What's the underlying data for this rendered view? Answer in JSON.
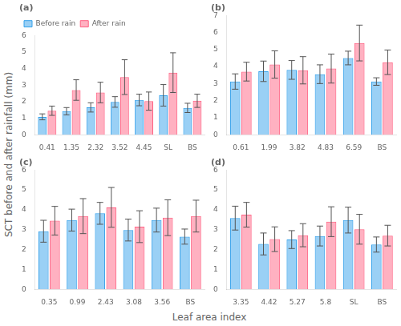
{
  "xlabel": "Leaf area index",
  "ylabel": "SCT before and after rainfall (mm)",
  "chart_data": [
    {
      "type": "bar",
      "title": "(a)",
      "categories": [
        "0.41",
        "1.35",
        "2.32",
        "3.52",
        "4.45",
        "SL",
        "BS"
      ],
      "series": [
        {
          "name": "Before rain",
          "values": [
            1.08,
            1.42,
            1.65,
            1.98,
            2.1,
            2.38,
            1.62
          ],
          "errors": [
            0.18,
            0.22,
            0.28,
            0.32,
            0.35,
            0.65,
            0.28
          ]
        },
        {
          "name": "After rain",
          "values": [
            1.45,
            2.7,
            2.55,
            3.48,
            2.03,
            3.75,
            2.05
          ],
          "errors": [
            0.28,
            0.62,
            0.62,
            1.05,
            0.55,
            1.2,
            0.4
          ]
        }
      ],
      "ylim": [
        0,
        6
      ],
      "yticks": [
        0,
        1,
        2,
        3,
        4,
        5,
        6
      ],
      "grid": false,
      "legend": "upper left"
    },
    {
      "type": "bar",
      "title": "(b)",
      "categories": [
        "0.61",
        "1.99",
        "3.82",
        "4.83",
        "6.59",
        "BS"
      ],
      "series": [
        {
          "values": [
            3.12,
            3.72,
            3.8,
            3.55,
            4.5,
            3.12
          ],
          "errors": [
            0.45,
            0.6,
            0.55,
            0.55,
            0.4,
            0.22
          ]
        },
        {
          "values": [
            3.7,
            4.12,
            3.78,
            3.88,
            5.38,
            4.25
          ],
          "errors": [
            0.55,
            0.8,
            0.8,
            0.85,
            1.05,
            0.72
          ]
        }
      ],
      "ylim": [
        0,
        7
      ],
      "yticks": [
        0,
        1,
        2,
        3,
        4,
        5,
        6,
        7
      ],
      "grid": false
    },
    {
      "type": "bar",
      "title": "(c)",
      "categories": [
        "0.35",
        "0.99",
        "2.43",
        "3.08",
        "3.56",
        "BS"
      ],
      "series": [
        {
          "values": [
            2.92,
            3.48,
            3.82,
            2.98,
            3.48,
            2.65
          ],
          "errors": [
            0.55,
            0.55,
            0.55,
            0.55,
            0.6,
            0.38
          ]
        },
        {
          "values": [
            3.45,
            3.68,
            4.12,
            3.15,
            3.6,
            3.68
          ],
          "errors": [
            0.72,
            0.88,
            1.0,
            0.8,
            0.9,
            0.8
          ]
        }
      ],
      "ylim": [
        0,
        6
      ],
      "yticks": [
        0,
        1,
        2,
        3,
        4,
        5,
        6
      ],
      "grid": false
    },
    {
      "type": "bar",
      "title": "(d)",
      "categories": [
        "3.35",
        "4.42",
        "5.27",
        "5.8",
        "SL",
        "BS"
      ],
      "series": [
        {
          "values": [
            3.58,
            2.28,
            2.5,
            2.68,
            3.48,
            2.25
          ],
          "errors": [
            0.6,
            0.55,
            0.45,
            0.5,
            0.65,
            0.38
          ]
        },
        {
          "values": [
            3.75,
            2.52,
            2.72,
            3.4,
            3.02,
            2.7
          ],
          "errors": [
            0.62,
            0.62,
            0.58,
            0.75,
            0.75,
            0.52
          ]
        }
      ],
      "ylim": [
        0,
        6
      ],
      "yticks": [
        0,
        1,
        2,
        3,
        4,
        5,
        6
      ],
      "grid": false
    }
  ]
}
